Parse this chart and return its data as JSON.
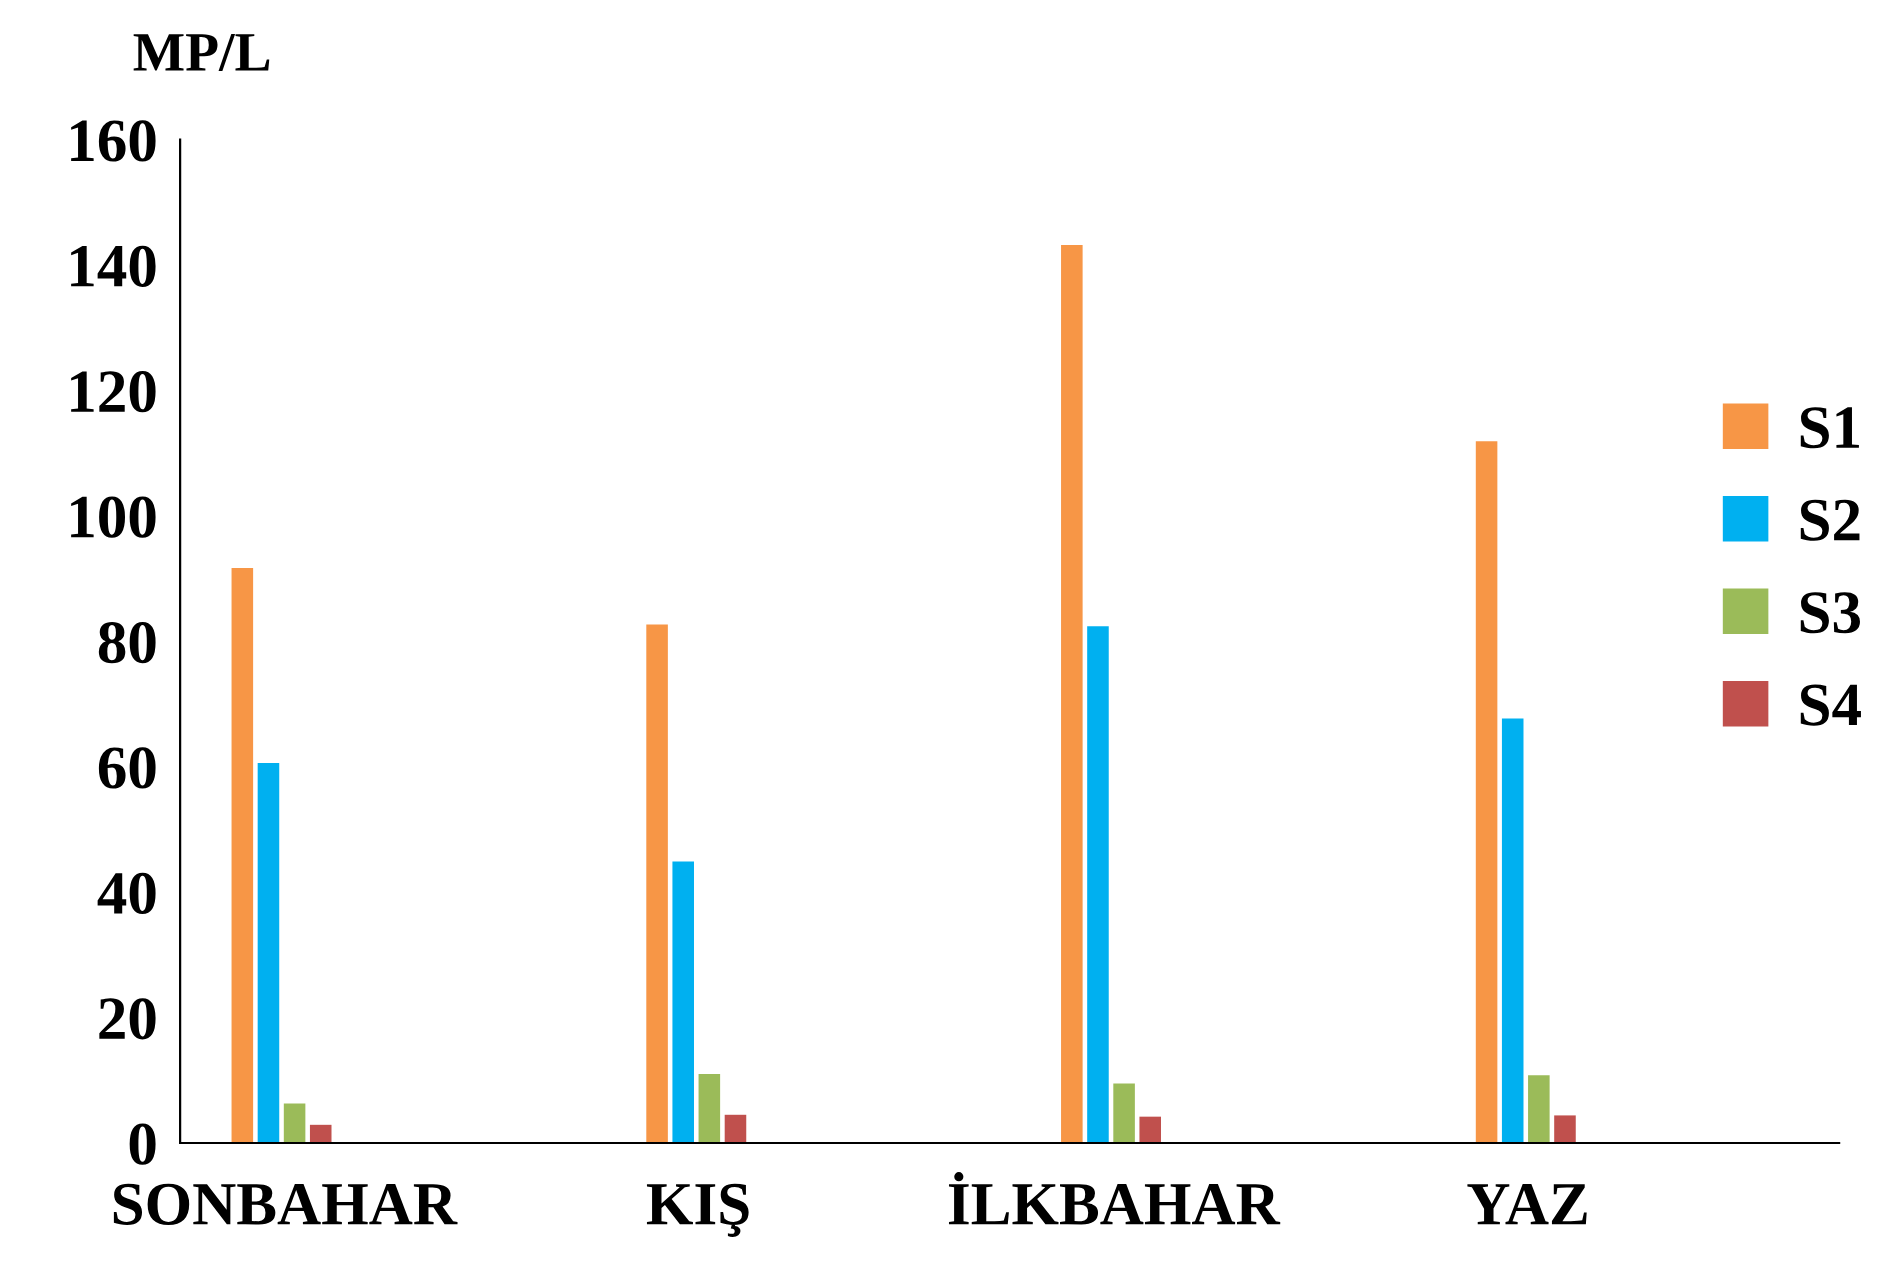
{
  "chart_data": {
    "type": "bar",
    "ylabel": "MP/L",
    "categories": [
      "SONBAHAR",
      "KIŞ",
      "İLKBAHAR",
      "YAZ"
    ],
    "series": [
      {
        "name": "S1",
        "color": "#f79646",
        "values": [
          91.7,
          82.7,
          143.2,
          111.9
        ]
      },
      {
        "name": "S2",
        "color": "#00b0f0",
        "values": [
          60.6,
          44.9,
          82.4,
          67.7
        ]
      },
      {
        "name": "S3",
        "color": "#9bbb59",
        "values": [
          6.3,
          11.0,
          9.5,
          10.8
        ]
      },
      {
        "name": "S4",
        "color": "#c0504d",
        "values": [
          2.9,
          4.5,
          4.2,
          4.4
        ]
      }
    ],
    "ylim": [
      0,
      160
    ],
    "yticks": [
      0,
      20,
      40,
      60,
      80,
      100,
      120,
      140,
      160
    ],
    "grid": false,
    "legend": "right"
  }
}
